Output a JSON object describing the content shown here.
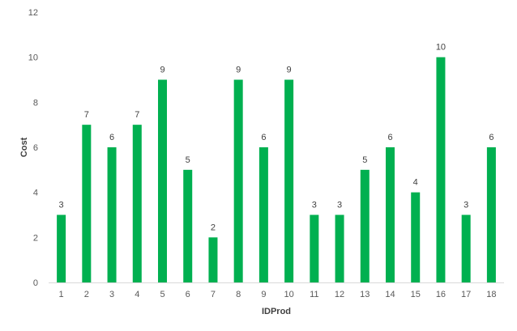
{
  "chart_data": {
    "type": "bar",
    "title": "",
    "xlabel": "IDProd",
    "ylabel": "Cost",
    "categories": [
      "1",
      "2",
      "3",
      "4",
      "5",
      "6",
      "7",
      "8",
      "9",
      "10",
      "11",
      "12",
      "13",
      "14",
      "15",
      "16",
      "17",
      "18"
    ],
    "values": [
      3,
      7,
      6,
      7,
      9,
      5,
      2,
      9,
      6,
      9,
      3,
      3,
      5,
      6,
      4,
      10,
      3,
      6
    ],
    "ylim": [
      0,
      12
    ],
    "yticks": [
      0,
      2,
      4,
      6,
      8,
      10,
      12
    ],
    "grid": false,
    "legend": "none",
    "data_labels": true,
    "colors": {
      "bar": "#00b050",
      "axis_line": "#d9d9d9"
    }
  }
}
